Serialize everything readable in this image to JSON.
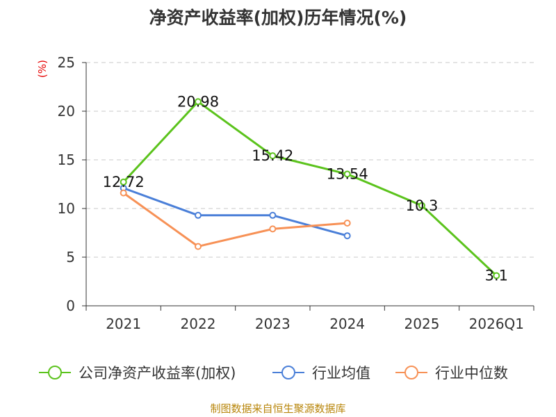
{
  "chart_data": {
    "type": "line",
    "title": "净资产收益率(加权)历年情况(%)",
    "unit_label": "(%)",
    "xlabel": "",
    "ylabel": "(%)",
    "ylim": [
      0,
      25
    ],
    "yticks": [
      0,
      5,
      10,
      15,
      20,
      25
    ],
    "categories": [
      "2021",
      "2022",
      "2023",
      "2024",
      "2025",
      "2026Q1"
    ],
    "grid": true,
    "legend_position": "bottom",
    "series": [
      {
        "name": "公司净资产收益率(加权)",
        "color": "#5bc31c",
        "values": [
          12.72,
          20.98,
          15.42,
          13.54,
          10.3,
          3.1
        ],
        "labels": [
          "12.72",
          "20.98",
          "15.42",
          "13.54",
          "10.3",
          "3.1"
        ]
      },
      {
        "name": "行业均值",
        "color": "#4a7fd8",
        "values": [
          12.1,
          9.3,
          9.3,
          7.2,
          null,
          null
        ]
      },
      {
        "name": "行业中位数",
        "color": "#f79156",
        "values": [
          11.6,
          6.1,
          7.9,
          8.5,
          null,
          null
        ]
      }
    ]
  },
  "footer": {
    "source": "制图数据来自恒生聚源数据库"
  }
}
